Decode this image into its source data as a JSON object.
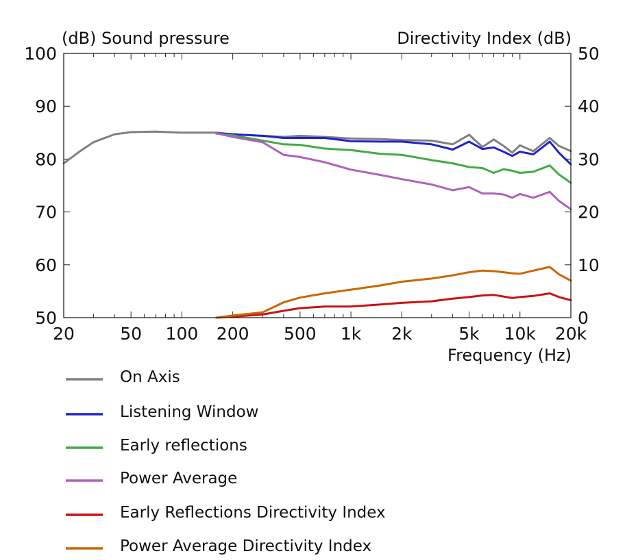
{
  "chart_data": {
    "type": "line",
    "title": "",
    "left_axis_title": "(dB)  Sound pressure",
    "right_axis_title": "Directivity Index  (dB)",
    "xlabel": "Frequency  (Hz)",
    "x_scale": "log",
    "xlim": [
      20,
      20000
    ],
    "x_ticks": [
      {
        "value": 20,
        "label": "20"
      },
      {
        "value": 50,
        "label": "50"
      },
      {
        "value": 100,
        "label": "100"
      },
      {
        "value": 200,
        "label": "200"
      },
      {
        "value": 500,
        "label": "500"
      },
      {
        "value": 1000,
        "label": "1k"
      },
      {
        "value": 2000,
        "label": "2k"
      },
      {
        "value": 5000,
        "label": "5k"
      },
      {
        "value": 10000,
        "label": "10k"
      },
      {
        "value": 20000,
        "label": "20k"
      }
    ],
    "ylim_left": [
      50,
      100
    ],
    "left_ticks": [
      "50",
      "60",
      "70",
      "80",
      "90",
      "100"
    ],
    "ylim_right": [
      0,
      50
    ],
    "right_ticks": [
      "0",
      "10",
      "20",
      "30",
      "40",
      "50"
    ],
    "series": [
      {
        "name": "On Axis",
        "axis": "left",
        "color": "#808080",
        "x": [
          20,
          25,
          30,
          40,
          50,
          70,
          100,
          130,
          160,
          200,
          300,
          400,
          500,
          700,
          1000,
          1500,
          2000,
          3000,
          4000,
          5000,
          6000,
          7000,
          8000,
          9000,
          10000,
          12000,
          15000,
          17000,
          20000
        ],
        "y": [
          79.2,
          81.5,
          83.2,
          84.7,
          85.1,
          85.2,
          85.0,
          85.0,
          85.0,
          84.7,
          84.4,
          84.2,
          84.4,
          84.2,
          83.9,
          83.8,
          83.6,
          83.5,
          82.8,
          84.6,
          82.3,
          83.7,
          82.5,
          81.2,
          82.6,
          81.5,
          84.0,
          82.5,
          81.5
        ]
      },
      {
        "name": "Listening Window",
        "axis": "left",
        "color": "#2222cc",
        "x": [
          160,
          200,
          300,
          400,
          500,
          700,
          1000,
          1500,
          2000,
          3000,
          4000,
          5000,
          6000,
          7000,
          8000,
          9000,
          10000,
          12000,
          15000,
          17000,
          20000
        ],
        "y": [
          84.9,
          84.7,
          84.4,
          84.0,
          84.0,
          84.0,
          83.4,
          83.3,
          83.3,
          82.8,
          81.8,
          83.3,
          81.9,
          82.2,
          81.4,
          80.6,
          81.4,
          80.9,
          83.3,
          81.2,
          79.0
        ]
      },
      {
        "name": "Early reflections",
        "axis": "left",
        "color": "#44aa44",
        "x": [
          160,
          200,
          300,
          400,
          500,
          700,
          1000,
          1500,
          2000,
          3000,
          4000,
          5000,
          6000,
          7000,
          8000,
          9000,
          10000,
          12000,
          15000,
          17000,
          20000
        ],
        "y": [
          84.8,
          84.5,
          83.5,
          82.8,
          82.7,
          82.0,
          81.7,
          81.0,
          80.8,
          79.8,
          79.2,
          78.5,
          78.3,
          77.4,
          78.1,
          77.8,
          77.4,
          77.6,
          78.8,
          77.1,
          75.5
        ]
      },
      {
        "name": "Power Average",
        "axis": "left",
        "color": "#b060c0",
        "x": [
          160,
          200,
          300,
          400,
          500,
          700,
          1000,
          1500,
          2000,
          3000,
          4000,
          5000,
          6000,
          7000,
          8000,
          9000,
          10000,
          12000,
          15000,
          17000,
          20000
        ],
        "y": [
          84.9,
          84.2,
          83.2,
          80.8,
          80.4,
          79.4,
          78.0,
          77.0,
          76.2,
          75.2,
          74.1,
          74.7,
          73.5,
          73.5,
          73.3,
          72.7,
          73.4,
          72.7,
          73.8,
          72.1,
          70.5
        ]
      },
      {
        "name": "Early Reflections Directivity Index",
        "axis": "right",
        "color": "#cc1111",
        "x": [
          160,
          200,
          300,
          400,
          500,
          700,
          1000,
          1500,
          2000,
          3000,
          4000,
          5000,
          6000,
          7000,
          8000,
          9000,
          10000,
          12000,
          15000,
          17000,
          20000
        ],
        "y": [
          0.0,
          0.2,
          0.6,
          1.3,
          1.8,
          2.1,
          2.1,
          2.5,
          2.8,
          3.1,
          3.6,
          3.9,
          4.2,
          4.3,
          4.0,
          3.7,
          3.9,
          4.1,
          4.6,
          3.9,
          3.3
        ]
      },
      {
        "name": "Power Average Directivity Index",
        "axis": "right",
        "color": "#cc6600",
        "x": [
          160,
          200,
          300,
          400,
          500,
          700,
          1000,
          1500,
          2000,
          3000,
          4000,
          5000,
          6000,
          7000,
          8000,
          9000,
          10000,
          12000,
          15000,
          17000,
          20000
        ],
        "y": [
          0.0,
          0.4,
          1.0,
          2.9,
          3.8,
          4.6,
          5.3,
          6.1,
          6.8,
          7.4,
          8.0,
          8.6,
          8.9,
          8.8,
          8.6,
          8.4,
          8.3,
          8.9,
          9.6,
          8.2,
          7.0
        ]
      }
    ]
  }
}
